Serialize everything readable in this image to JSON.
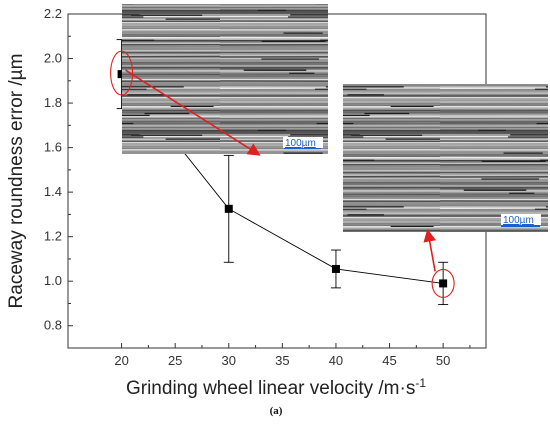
{
  "chart_data": {
    "type": "line",
    "x": [
      20,
      30,
      40,
      50
    ],
    "series": [
      {
        "values": [
          1.93,
          1.325,
          1.055,
          0.99
        ],
        "error": [
          0.155,
          0.24,
          0.085,
          0.095
        ]
      }
    ],
    "xlabel": "Grinding wheel linear velocity /m·s",
    "xlabel_sup": "-1",
    "ylabel": "Raceway roundness error /µm",
    "xlim": [
      15,
      54
    ],
    "ylim": [
      0.7,
      2.2
    ],
    "xticks": [
      "20",
      "25",
      "30",
      "35",
      "40",
      "45",
      "50"
    ],
    "yticks": [
      "0.8",
      "1.0",
      "1.2",
      "1.4",
      "1.6",
      "1.8",
      "2.0",
      "2.2"
    ],
    "grid": false,
    "caption": "(a)",
    "insets": [
      {
        "points_to_x": 30,
        "scale_label": "100µm"
      },
      {
        "points_to_x": 50,
        "scale_label": "100µm"
      }
    ],
    "colors": {
      "line": "#000000",
      "highlight": "#e02020",
      "scale": "#1a5fd0"
    }
  }
}
